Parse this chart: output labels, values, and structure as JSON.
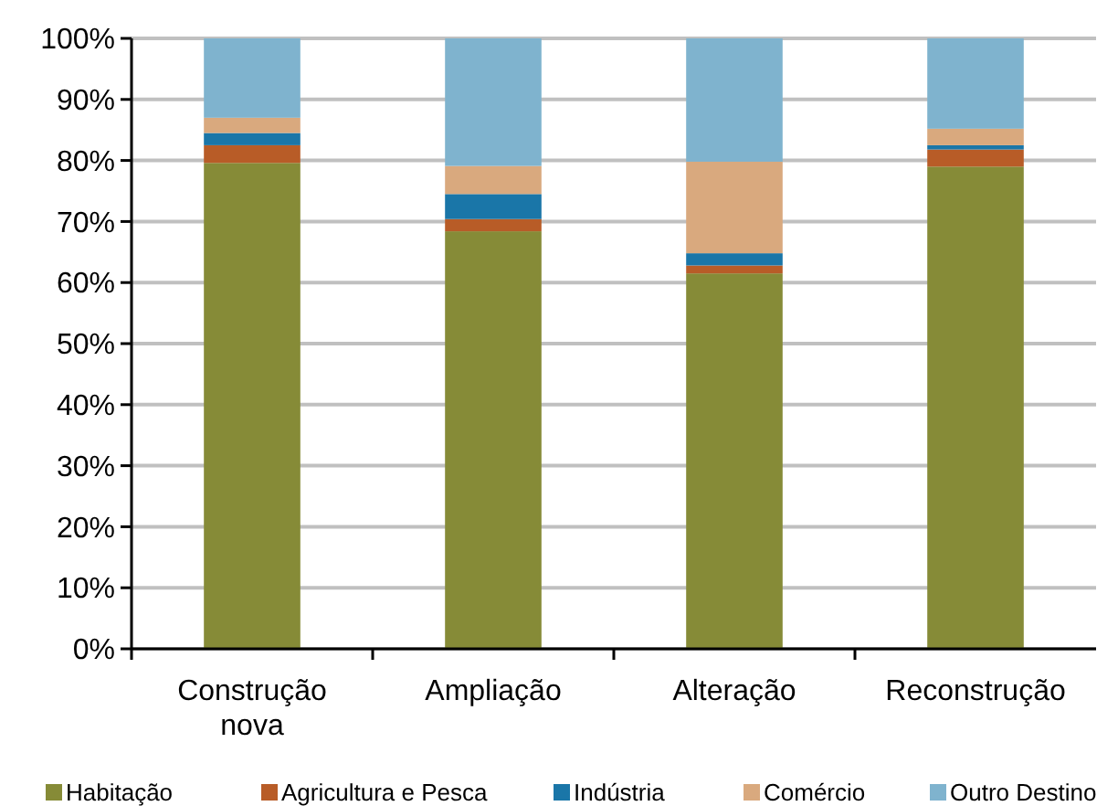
{
  "chart_data": {
    "type": "bar",
    "stacked": true,
    "categories": [
      "Construção nova",
      "Ampliação",
      "Alteração",
      "Reconstrução"
    ],
    "series": [
      {
        "name": "Habitação",
        "color": "#868b37",
        "values": [
          79.6,
          68.4,
          61.5,
          79.0
        ]
      },
      {
        "name": "Agricultura e Pesca",
        "color": "#b85c27",
        "values": [
          2.9,
          2.0,
          1.3,
          2.8
        ]
      },
      {
        "name": "Indústria",
        "color": "#1a76a8",
        "values": [
          2.0,
          4.1,
          2.0,
          0.7
        ]
      },
      {
        "name": "Comércio",
        "color": "#d9a97e",
        "values": [
          2.5,
          4.6,
          15.0,
          2.7
        ]
      },
      {
        "name": "Outro Destino",
        "color": "#7fb3ce",
        "values": [
          13.0,
          20.9,
          20.2,
          14.8
        ]
      }
    ],
    "ylim": [
      0,
      100
    ],
    "yticks": [
      {
        "value": 0,
        "label": "0%"
      },
      {
        "value": 10,
        "label": "10%"
      },
      {
        "value": 20,
        "label": "20%"
      },
      {
        "value": 30,
        "label": "30%"
      },
      {
        "value": 40,
        "label": "40%"
      },
      {
        "value": 50,
        "label": "50%"
      },
      {
        "value": 60,
        "label": "60%"
      },
      {
        "value": 70,
        "label": "70%"
      },
      {
        "value": 80,
        "label": "80%"
      },
      {
        "value": 90,
        "label": "90%"
      },
      {
        "value": 100,
        "label": "100%"
      }
    ],
    "grid": "y",
    "legend": "bottom"
  }
}
